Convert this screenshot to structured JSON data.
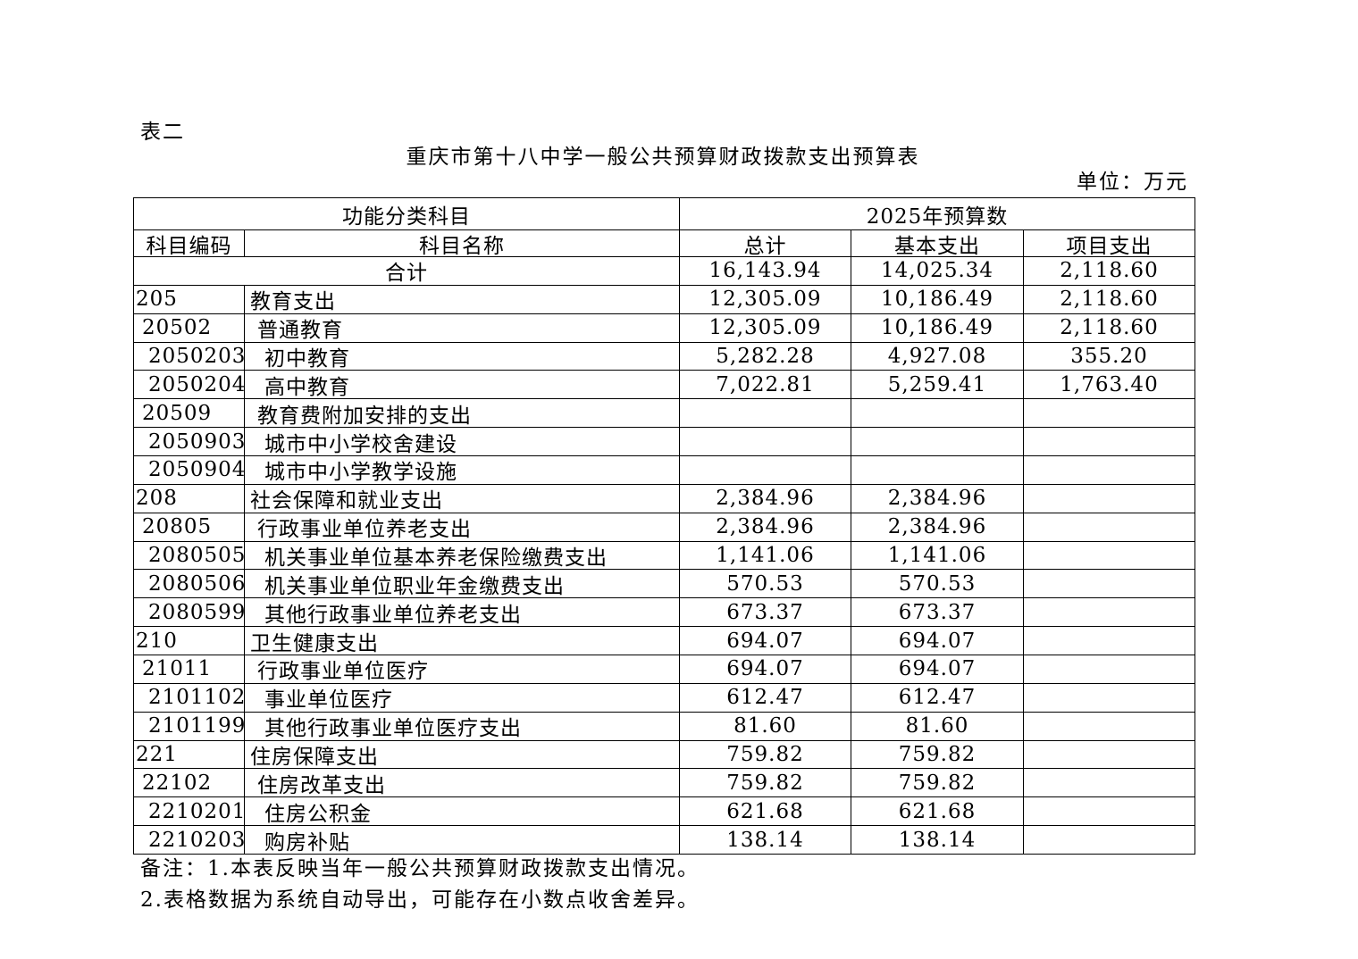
{
  "document": {
    "label": "表二",
    "title": "重庆市第十八中学一般公共预算财政拨款支出预算表",
    "unit": "单位：万元",
    "table": {
      "group_headers": [
        "功能分类科目",
        "2025年预算数"
      ],
      "headers": [
        "科目编码",
        "科目名称",
        "总计",
        "基本支出",
        "项目支出"
      ],
      "total_row": {
        "label": "合计",
        "total": "16,143.94",
        "basic": "14,025.34",
        "project": "2,118.60"
      },
      "rows": [
        [
          "205",
          "教育支出",
          "12,305.09",
          "10,186.49",
          "2,118.60"
        ],
        [
          "20502",
          "普通教育",
          "12,305.09",
          "10,186.49",
          "2,118.60"
        ],
        [
          "2050203",
          "初中教育",
          "5,282.28",
          "4,927.08",
          "355.20"
        ],
        [
          "2050204",
          "高中教育",
          "7,022.81",
          "5,259.41",
          "1,763.40"
        ],
        [
          "20509",
          "教育费附加安排的支出",
          null,
          null,
          null
        ],
        [
          "2050903",
          "城市中小学校舍建设",
          null,
          null,
          null
        ],
        [
          "2050904",
          "城市中小学教学设施",
          null,
          null,
          null
        ],
        [
          "208",
          "社会保障和就业支出",
          "2,384.96",
          "2,384.96",
          null
        ],
        [
          "20805",
          "行政事业单位养老支出",
          "2,384.96",
          "2,384.96",
          null
        ],
        [
          "2080505",
          "机关事业单位基本养老保险缴费支出",
          "1,141.06",
          "1,141.06",
          null
        ],
        [
          "2080506",
          "机关事业单位职业年金缴费支出",
          "570.53",
          "570.53",
          null
        ],
        [
          "2080599",
          "其他行政事业单位养老支出",
          "673.37",
          "673.37",
          null
        ],
        [
          "210",
          "卫生健康支出",
          "694.07",
          "694.07",
          null
        ],
        [
          "21011",
          "行政事业单位医疗",
          "694.07",
          "694.07",
          null
        ],
        [
          "2101102",
          "事业单位医疗",
          "612.47",
          "612.47",
          null
        ],
        [
          "2101199",
          "其他行政事业单位医疗支出",
          "81.60",
          "81.60",
          null
        ],
        [
          "221",
          "住房保障支出",
          "759.82",
          "759.82",
          null
        ],
        [
          "22102",
          "住房改革支出",
          "759.82",
          "759.82",
          null
        ],
        [
          "2210201",
          "住房公积金",
          "621.68",
          "621.68",
          null
        ],
        [
          "2210203",
          "购房补贴",
          "138.14",
          "138.14",
          null
        ]
      ]
    },
    "notes": [
      "备注：1.本表反映当年一般公共预算财政拨款支出情况。",
      "2.表格数据为系统自动导出，可能存在小数点收舍差异。"
    ]
  }
}
